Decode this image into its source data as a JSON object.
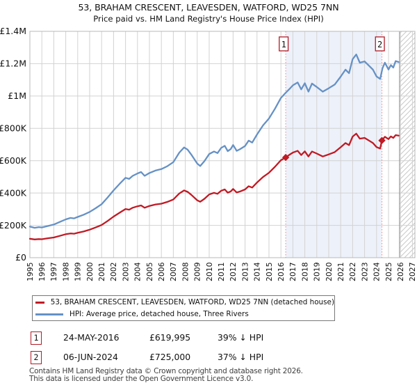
{
  "page": {
    "title": "53, BRAHAM CRESCENT, LEAVESDEN, WATFORD, WD25 7NN",
    "subtitle": "Price paid vs. HM Land Registry's House Price Index (HPI)"
  },
  "chart_data": {
    "type": "line",
    "title": "53, BRAHAM CRESCENT, LEAVESDEN, WATFORD, WD25 7NN",
    "subtitle": "Price paid vs. HM Land Registry's House Price Index (HPI)",
    "grid": true,
    "legend_position": "below",
    "x_axis": {
      "min": 1995,
      "max": 2027.2,
      "tick_years": [
        1995,
        1996,
        1997,
        1998,
        1999,
        2000,
        2001,
        2002,
        2003,
        2004,
        2005,
        2006,
        2007,
        2008,
        2009,
        2010,
        2011,
        2012,
        2013,
        2014,
        2015,
        2016,
        2017,
        2018,
        2019,
        2020,
        2021,
        2022,
        2023,
        2024,
        2025,
        2026,
        2027
      ]
    },
    "y_axis": {
      "min": 0,
      "max": 1400000,
      "ticks": [
        {
          "value": 0,
          "label": "£0"
        },
        {
          "value": 200000,
          "label": "£200K"
        },
        {
          "value": 400000,
          "label": "£400K"
        },
        {
          "value": 600000,
          "label": "£600K"
        },
        {
          "value": 800000,
          "label": "£800K"
        },
        {
          "value": 1000000,
          "label": "£1M"
        },
        {
          "value": 1200000,
          "label": "£1.2M"
        },
        {
          "value": 1400000,
          "label": "£1.4M"
        }
      ]
    },
    "series": [
      {
        "name": "hpi",
        "label": "HPI: Average price, detached house, Three Rivers",
        "color": "#6591c5",
        "points": [
          [
            1995.0,
            192000
          ],
          [
            1995.4,
            185000
          ],
          [
            1995.75,
            189000
          ],
          [
            1996.0,
            187000
          ],
          [
            1996.5,
            196000
          ],
          [
            1997.0,
            205000
          ],
          [
            1997.5,
            221000
          ],
          [
            1998.0,
            237000
          ],
          [
            1998.4,
            246000
          ],
          [
            1998.7,
            243000
          ],
          [
            1999.0,
            252000
          ],
          [
            1999.5,
            266000
          ],
          [
            2000.0,
            283000
          ],
          [
            2000.5,
            306000
          ],
          [
            2001.0,
            331000
          ],
          [
            2001.5,
            372000
          ],
          [
            2002.0,
            416000
          ],
          [
            2002.5,
            456000
          ],
          [
            2003.0,
            494000
          ],
          [
            2003.3,
            487000
          ],
          [
            2003.6,
            506000
          ],
          [
            2004.0,
            521000
          ],
          [
            2004.3,
            530000
          ],
          [
            2004.6,
            506000
          ],
          [
            2005.0,
            524000
          ],
          [
            2005.5,
            539000
          ],
          [
            2006.0,
            548000
          ],
          [
            2006.5,
            566000
          ],
          [
            2007.0,
            591000
          ],
          [
            2007.5,
            650000
          ],
          [
            2007.9,
            682000
          ],
          [
            2008.2,
            668000
          ],
          [
            2008.5,
            638000
          ],
          [
            2009.0,
            582000
          ],
          [
            2009.25,
            567000
          ],
          [
            2009.6,
            597000
          ],
          [
            2010.0,
            641000
          ],
          [
            2010.4,
            657000
          ],
          [
            2010.7,
            647000
          ],
          [
            2011.0,
            679000
          ],
          [
            2011.3,
            692000
          ],
          [
            2011.55,
            659000
          ],
          [
            2011.8,
            672000
          ],
          [
            2012.0,
            697000
          ],
          [
            2012.3,
            661000
          ],
          [
            2012.6,
            672000
          ],
          [
            2013.0,
            691000
          ],
          [
            2013.3,
            724000
          ],
          [
            2013.6,
            712000
          ],
          [
            2014.0,
            762000
          ],
          [
            2014.5,
            818000
          ],
          [
            2015.0,
            861000
          ],
          [
            2015.5,
            921000
          ],
          [
            2016.0,
            988000
          ],
          [
            2016.4,
            1020000
          ],
          [
            2016.7,
            1042000
          ],
          [
            2017.0,
            1066000
          ],
          [
            2017.4,
            1084000
          ],
          [
            2017.7,
            1041000
          ],
          [
            2018.0,
            1079000
          ],
          [
            2018.3,
            1027000
          ],
          [
            2018.6,
            1077000
          ],
          [
            2019.0,
            1056000
          ],
          [
            2019.5,
            1027000
          ],
          [
            2020.0,
            1048000
          ],
          [
            2020.5,
            1071000
          ],
          [
            2021.0,
            1120000
          ],
          [
            2021.4,
            1163000
          ],
          [
            2021.7,
            1141000
          ],
          [
            2022.0,
            1228000
          ],
          [
            2022.3,
            1257000
          ],
          [
            2022.6,
            1206000
          ],
          [
            2023.0,
            1214000
          ],
          [
            2023.4,
            1185000
          ],
          [
            2023.7,
            1163000
          ],
          [
            2024.0,
            1121000
          ],
          [
            2024.3,
            1106000
          ],
          [
            2024.5,
            1172000
          ],
          [
            2024.7,
            1206000
          ],
          [
            2025.0,
            1164000
          ],
          [
            2025.2,
            1191000
          ],
          [
            2025.4,
            1176000
          ],
          [
            2025.6,
            1216000
          ],
          [
            2025.85,
            1210000
          ]
        ]
      },
      {
        "name": "price-paid",
        "label": "53, BRAHAM CRESCENT, LEAVESDEN, WATFORD, WD25 7NN (detached house)",
        "color": "#c01a24",
        "points": [
          [
            1995.0,
            117000
          ],
          [
            1995.4,
            113000
          ],
          [
            1995.75,
            115000
          ],
          [
            1996.0,
            114000
          ],
          [
            1996.5,
            120000
          ],
          [
            1997.0,
            125000
          ],
          [
            1997.5,
            135000
          ],
          [
            1998.0,
            145000
          ],
          [
            1998.4,
            150000
          ],
          [
            1998.7,
            148000
          ],
          [
            1999.0,
            154000
          ],
          [
            1999.5,
            162000
          ],
          [
            2000.0,
            173000
          ],
          [
            2000.5,
            187000
          ],
          [
            2001.0,
            202000
          ],
          [
            2001.5,
            227000
          ],
          [
            2002.0,
            254000
          ],
          [
            2002.5,
            278000
          ],
          [
            2003.0,
            301000
          ],
          [
            2003.3,
            297000
          ],
          [
            2003.6,
            309000
          ],
          [
            2004.0,
            318000
          ],
          [
            2004.3,
            323000
          ],
          [
            2004.6,
            309000
          ],
          [
            2005.0,
            320000
          ],
          [
            2005.5,
            329000
          ],
          [
            2006.0,
            334000
          ],
          [
            2006.5,
            345000
          ],
          [
            2007.0,
            360000
          ],
          [
            2007.5,
            397000
          ],
          [
            2007.9,
            416000
          ],
          [
            2008.2,
            407000
          ],
          [
            2008.5,
            389000
          ],
          [
            2009.0,
            355000
          ],
          [
            2009.25,
            346000
          ],
          [
            2009.6,
            364000
          ],
          [
            2010.0,
            391000
          ],
          [
            2010.4,
            401000
          ],
          [
            2010.7,
            395000
          ],
          [
            2011.0,
            414000
          ],
          [
            2011.3,
            422000
          ],
          [
            2011.55,
            402000
          ],
          [
            2011.8,
            410000
          ],
          [
            2012.0,
            425000
          ],
          [
            2012.3,
            403000
          ],
          [
            2012.6,
            410000
          ],
          [
            2013.0,
            422000
          ],
          [
            2013.3,
            442000
          ],
          [
            2013.6,
            434000
          ],
          [
            2014.0,
            465000
          ],
          [
            2014.5,
            499000
          ],
          [
            2015.0,
            525000
          ],
          [
            2015.5,
            562000
          ],
          [
            2016.0,
            603000
          ],
          [
            2016.4,
            619995
          ],
          [
            2016.7,
            636000
          ],
          [
            2017.0,
            650000
          ],
          [
            2017.4,
            661000
          ],
          [
            2017.7,
            635000
          ],
          [
            2018.0,
            658000
          ],
          [
            2018.3,
            626000
          ],
          [
            2018.6,
            657000
          ],
          [
            2019.0,
            644000
          ],
          [
            2019.5,
            626000
          ],
          [
            2020.0,
            639000
          ],
          [
            2020.5,
            653000
          ],
          [
            2021.0,
            683000
          ],
          [
            2021.4,
            709000
          ],
          [
            2021.7,
            696000
          ],
          [
            2022.0,
            749000
          ],
          [
            2022.3,
            767000
          ],
          [
            2022.6,
            736000
          ],
          [
            2023.0,
            741000
          ],
          [
            2023.4,
            723000
          ],
          [
            2023.7,
            709000
          ],
          [
            2024.0,
            684000
          ],
          [
            2024.3,
            675000
          ],
          [
            2024.45,
            725000
          ],
          [
            2024.7,
            748000
          ],
          [
            2025.0,
            733000
          ],
          [
            2025.2,
            750000
          ],
          [
            2025.4,
            741000
          ],
          [
            2025.6,
            758000
          ],
          [
            2025.85,
            755000
          ]
        ]
      }
    ],
    "sales": [
      {
        "number": "1",
        "date": "24-MAY-2016",
        "year": 2016.4,
        "price": 619995,
        "price_label": "£619,995",
        "vs_hpi": "39% ↓ HPI"
      },
      {
        "number": "2",
        "date": "06-JUN-2024",
        "year": 2024.45,
        "price": 725000,
        "price_label": "£725,000",
        "vs_hpi": "37% ↓ HPI"
      }
    ],
    "ownership_span": [
      2016.4,
      2024.45
    ],
    "data_end": 2025.92,
    "colors": {
      "sale_marker_line": "#ee8484",
      "sale_box_border": "#b01a26",
      "grid": "#d2d2d2",
      "plot_border": "#b8b8b8",
      "ownership_shade": "#edf1fa",
      "future_hatch": "#c9c9c9",
      "data_end_line": "#909090"
    }
  },
  "footer": {
    "line1": "Contains HM Land Registry data © Crown copyright and database right 2026.",
    "line2": "This data is licensed under the Open Government Licence v3.0."
  }
}
